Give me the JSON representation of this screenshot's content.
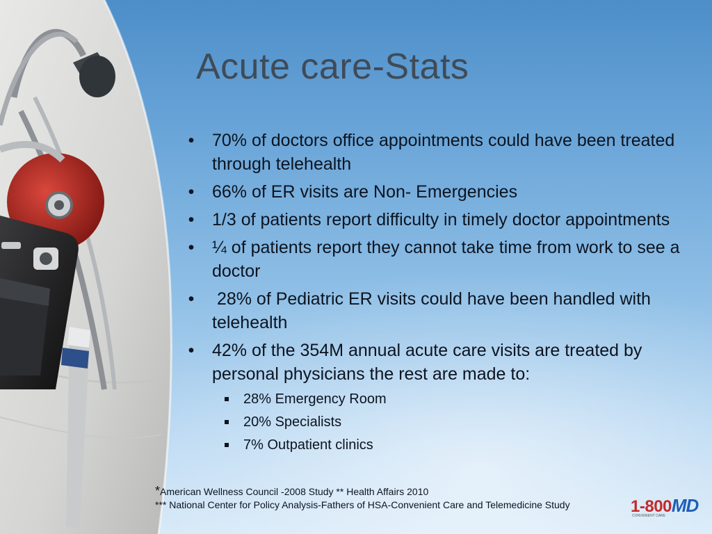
{
  "slide": {
    "title": "Acute care-Stats",
    "bullets": [
      {
        "text": "70% of doctors office appointments could have been treated through telehealth"
      },
      {
        "text": "66% of ER visits are Non- Emergencies"
      },
      {
        "text": "1/3 of patients report difficulty in timely doctor appointments"
      },
      {
        "text": "¼ of patients report they cannot take time from work to see a doctor"
      },
      {
        "text": " 28% of Pediatric ER visits could have been handled with telehealth"
      },
      {
        "text": "42% of the 354M annual acute care visits are treated by personal physicians the rest are made to:"
      }
    ],
    "sub_bullets": [
      "28% Emergency Room",
      "20% Specialists",
      "7% Outpatient clinics"
    ],
    "footnote_star": "*",
    "footnote_line1": "American Wellness Council -2008 Study  ** Health Affairs 2010",
    "footnote_line2": "*** National Center for Policy Analysis-Fathers of HSA-Convenient Care and Telemedicine Study",
    "bullet_glyph": "•"
  },
  "logo": {
    "number": "1-800",
    "letters": "MD",
    "tagline": "CONVENIENT CARE"
  },
  "photo": {
    "description_icon": "stethoscope-phone-pocket-image"
  },
  "colors": {
    "title": "#3f4b57",
    "text": "#0c1420",
    "logo_red": "#c32b2b",
    "logo_blue": "#1e5fb8"
  }
}
